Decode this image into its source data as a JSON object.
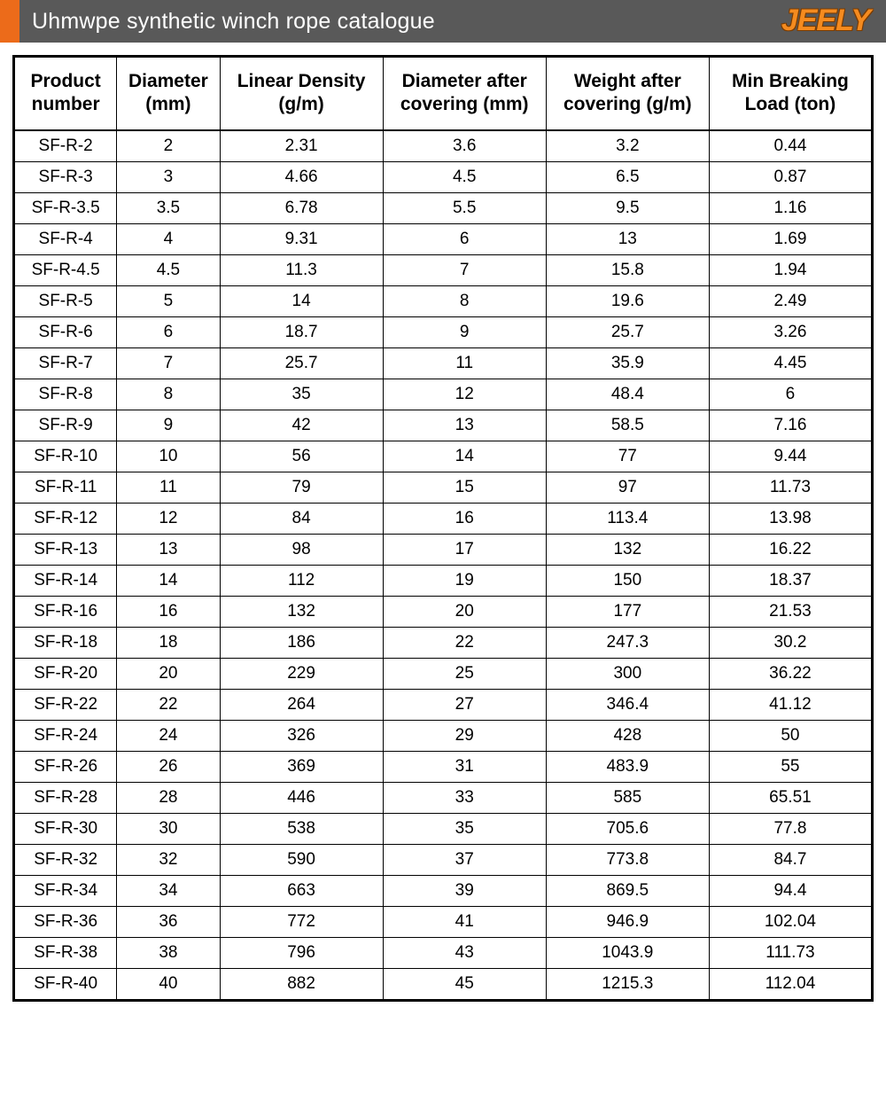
{
  "header": {
    "title": "Uhmwpe synthetic winch rope catalogue",
    "logo_text": "JEELY",
    "bar_bg": "#595959",
    "accent_color": "#ec6b1a",
    "title_color": "#ffffff",
    "logo_color": "#f58b1f"
  },
  "table": {
    "type": "table",
    "background_color": "#ffffff",
    "border_color": "#000000",
    "header_fontsize": 21,
    "cell_fontsize": 19,
    "text_color": "#000000",
    "column_widths_pct": [
      12,
      12,
      19,
      19,
      19,
      19
    ],
    "columns": [
      "Product number",
      "Diameter (mm)",
      "Linear Density (g/m)",
      "Diameter after covering (mm)",
      "Weight after covering (g/m)",
      "Min Breaking Load (ton)"
    ],
    "rows": [
      [
        "SF-R-2",
        "2",
        "2.31",
        "3.6",
        "3.2",
        "0.44"
      ],
      [
        "SF-R-3",
        "3",
        "4.66",
        "4.5",
        "6.5",
        "0.87"
      ],
      [
        "SF-R-3.5",
        "3.5",
        "6.78",
        "5.5",
        "9.5",
        "1.16"
      ],
      [
        "SF-R-4",
        "4",
        "9.31",
        "6",
        "13",
        "1.69"
      ],
      [
        "SF-R-4.5",
        "4.5",
        "11.3",
        "7",
        "15.8",
        "1.94"
      ],
      [
        "SF-R-5",
        "5",
        "14",
        "8",
        "19.6",
        "2.49"
      ],
      [
        "SF-R-6",
        "6",
        "18.7",
        "9",
        "25.7",
        "3.26"
      ],
      [
        "SF-R-7",
        "7",
        "25.7",
        "11",
        "35.9",
        "4.45"
      ],
      [
        "SF-R-8",
        "8",
        "35",
        "12",
        "48.4",
        "6"
      ],
      [
        "SF-R-9",
        "9",
        "42",
        "13",
        "58.5",
        "7.16"
      ],
      [
        "SF-R-10",
        "10",
        "56",
        "14",
        "77",
        "9.44"
      ],
      [
        "SF-R-11",
        "11",
        "79",
        "15",
        "97",
        "11.73"
      ],
      [
        "SF-R-12",
        "12",
        "84",
        "16",
        "113.4",
        "13.98"
      ],
      [
        "SF-R-13",
        "13",
        "98",
        "17",
        "132",
        "16.22"
      ],
      [
        "SF-R-14",
        "14",
        "112",
        "19",
        "150",
        "18.37"
      ],
      [
        "SF-R-16",
        "16",
        "132",
        "20",
        "177",
        "21.53"
      ],
      [
        "SF-R-18",
        "18",
        "186",
        "22",
        "247.3",
        "30.2"
      ],
      [
        "SF-R-20",
        "20",
        "229",
        "25",
        "300",
        "36.22"
      ],
      [
        "SF-R-22",
        "22",
        "264",
        "27",
        "346.4",
        "41.12"
      ],
      [
        "SF-R-24",
        "24",
        "326",
        "29",
        "428",
        "50"
      ],
      [
        "SF-R-26",
        "26",
        "369",
        "31",
        "483.9",
        "55"
      ],
      [
        "SF-R-28",
        "28",
        "446",
        "33",
        "585",
        "65.51"
      ],
      [
        "SF-R-30",
        "30",
        "538",
        "35",
        "705.6",
        "77.8"
      ],
      [
        "SF-R-32",
        "32",
        "590",
        "37",
        "773.8",
        "84.7"
      ],
      [
        "SF-R-34",
        "34",
        "663",
        "39",
        "869.5",
        "94.4"
      ],
      [
        "SF-R-36",
        "36",
        "772",
        "41",
        "946.9",
        "102.04"
      ],
      [
        "SF-R-38",
        "38",
        "796",
        "43",
        "1043.9",
        "111.73"
      ],
      [
        "SF-R-40",
        "40",
        "882",
        "45",
        "1215.3",
        "112.04"
      ]
    ]
  }
}
